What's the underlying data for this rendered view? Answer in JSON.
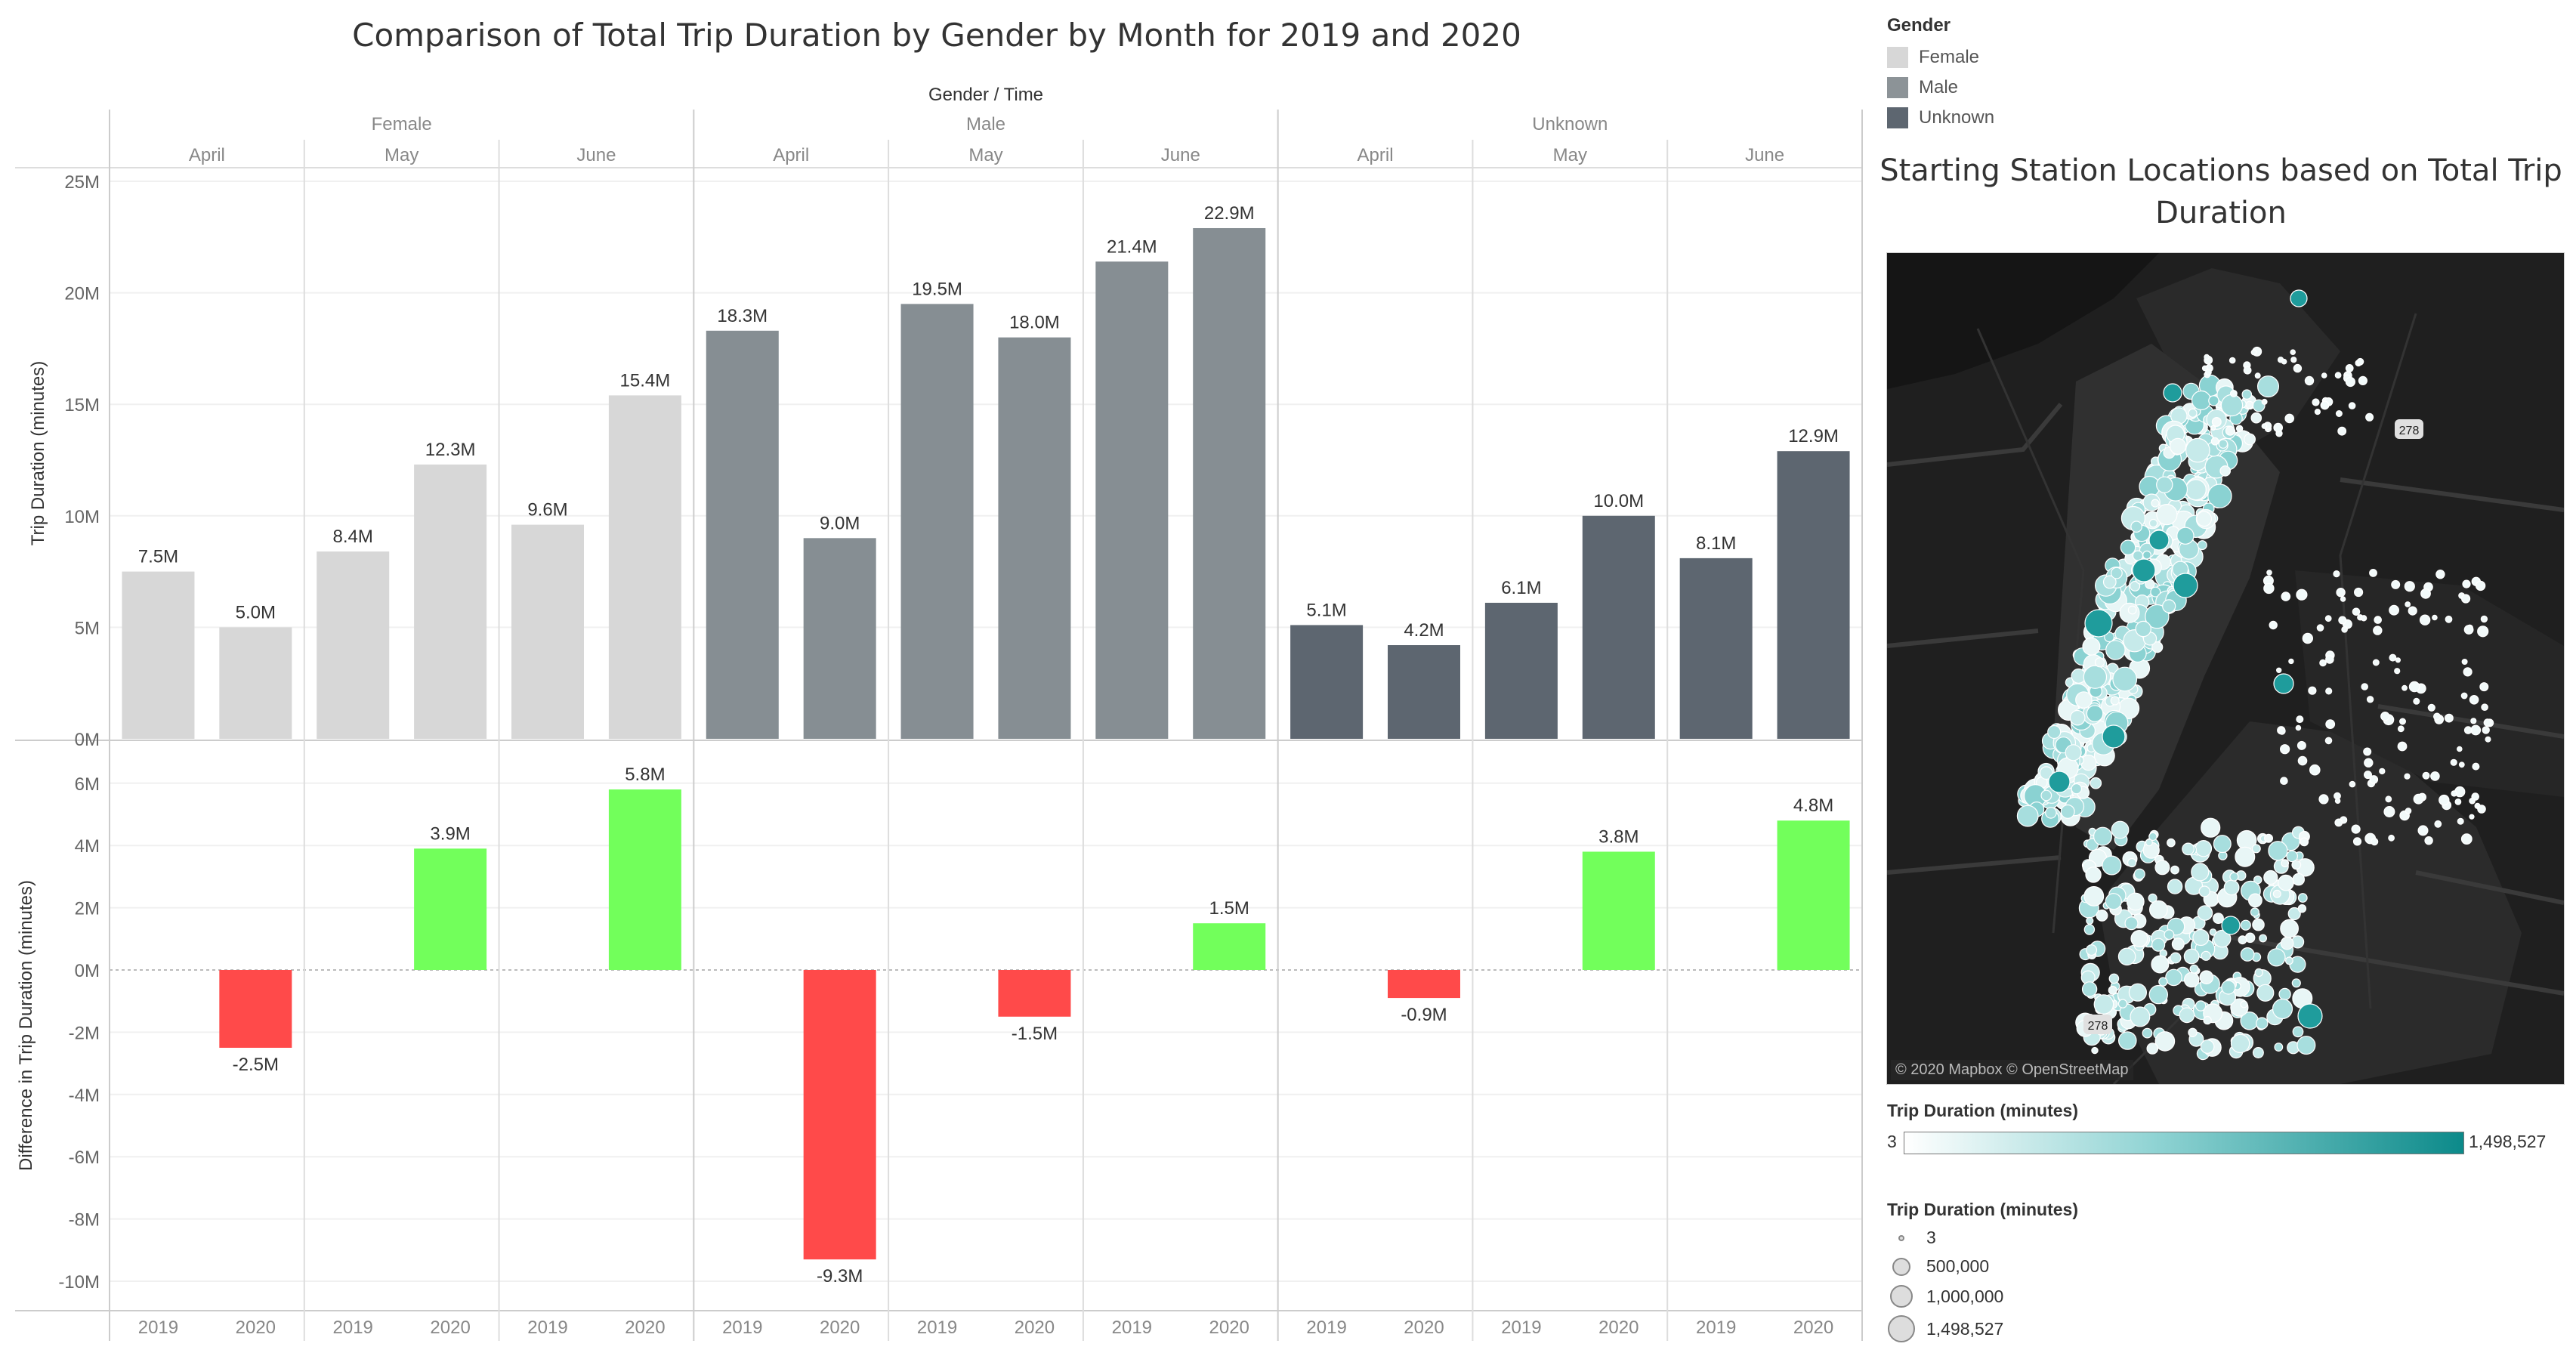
{
  "title": "Comparison of Total Trip Duration by Gender by Month for 2019 and 2020",
  "colors": {
    "female": "#d7d7d7",
    "male": "#868e93",
    "unknown": "#5d6670",
    "positive": "#72ff5b",
    "negative": "#ff4a4a"
  },
  "legend": {
    "title": "Gender",
    "items": [
      {
        "label": "Female",
        "color": "#d7d7d7"
      },
      {
        "label": "Male",
        "color": "#8c9397"
      },
      {
        "label": "Unknown",
        "color": "#5d6670"
      }
    ]
  },
  "chart_data": {
    "type": "bar",
    "title": "Comparison of Total Trip Duration by Gender by Month for 2019 and 2020",
    "header_label": "Gender / Time",
    "genders": [
      "Female",
      "Male",
      "Unknown"
    ],
    "months": [
      "April",
      "May",
      "June"
    ],
    "years": [
      "2019",
      "2020"
    ],
    "top": {
      "ylabel": "Trip Duration (minutes)",
      "ylim": [
        0,
        25
      ],
      "ticks": [
        0,
        5,
        10,
        15,
        20,
        25
      ],
      "tick_labels": [
        "0M",
        "5M",
        "10M",
        "15M",
        "20M",
        "25M"
      ],
      "series": [
        {
          "gender": "Female",
          "values": [
            7.5,
            5.0,
            8.4,
            12.3,
            9.6,
            15.4
          ],
          "labels": [
            "7.5M",
            "5.0M",
            "8.4M",
            "12.3M",
            "9.6M",
            "15.4M"
          ]
        },
        {
          "gender": "Male",
          "values": [
            18.3,
            9.0,
            19.5,
            18.0,
            21.4,
            22.9
          ],
          "labels": [
            "18.3M",
            "9.0M",
            "19.5M",
            "18.0M",
            "21.4M",
            "22.9M"
          ]
        },
        {
          "gender": "Unknown",
          "values": [
            5.1,
            4.2,
            6.1,
            10.0,
            8.1,
            12.9
          ],
          "labels": [
            "5.1M",
            "4.2M",
            "6.1M",
            "10.0M",
            "8.1M",
            "12.9M"
          ]
        }
      ]
    },
    "bottom": {
      "ylabel": "Difference in Trip Duration (minutes)",
      "ylim": [
        -10.5,
        6.5
      ],
      "ticks": [
        -10,
        -8,
        -6,
        -4,
        -2,
        0,
        2,
        4,
        6
      ],
      "tick_labels": [
        "-10M",
        "-8M",
        "-6M",
        "-4M",
        "-2M",
        "0M",
        "2M",
        "4M",
        "6M"
      ],
      "series": [
        {
          "gender": "Female",
          "values": [
            -2.5,
            3.9,
            5.8
          ],
          "labels": [
            "-2.5M",
            "3.9M",
            "5.8M"
          ]
        },
        {
          "gender": "Male",
          "values": [
            -9.3,
            -1.5,
            1.5
          ],
          "labels": [
            "-9.3M",
            "-1.5M",
            "1.5M"
          ]
        },
        {
          "gender": "Unknown",
          "values": [
            -0.9,
            3.8,
            4.8
          ],
          "labels": [
            "-0.9M",
            "3.8M",
            "4.8M"
          ]
        }
      ]
    }
  },
  "map": {
    "title": "Starting Station Locations based on Total Trip Duration",
    "credit": "© 2020 Mapbox © OpenStreetMap",
    "shield_labels": [
      "278",
      "278"
    ],
    "color_legend": {
      "title": "Trip Duration (minutes)",
      "min": "3",
      "max": "1,498,527"
    },
    "size_legend": {
      "title": "Trip Duration (minutes)",
      "items": [
        "3",
        "500,000",
        "1,000,000",
        "1,498,527"
      ]
    }
  }
}
